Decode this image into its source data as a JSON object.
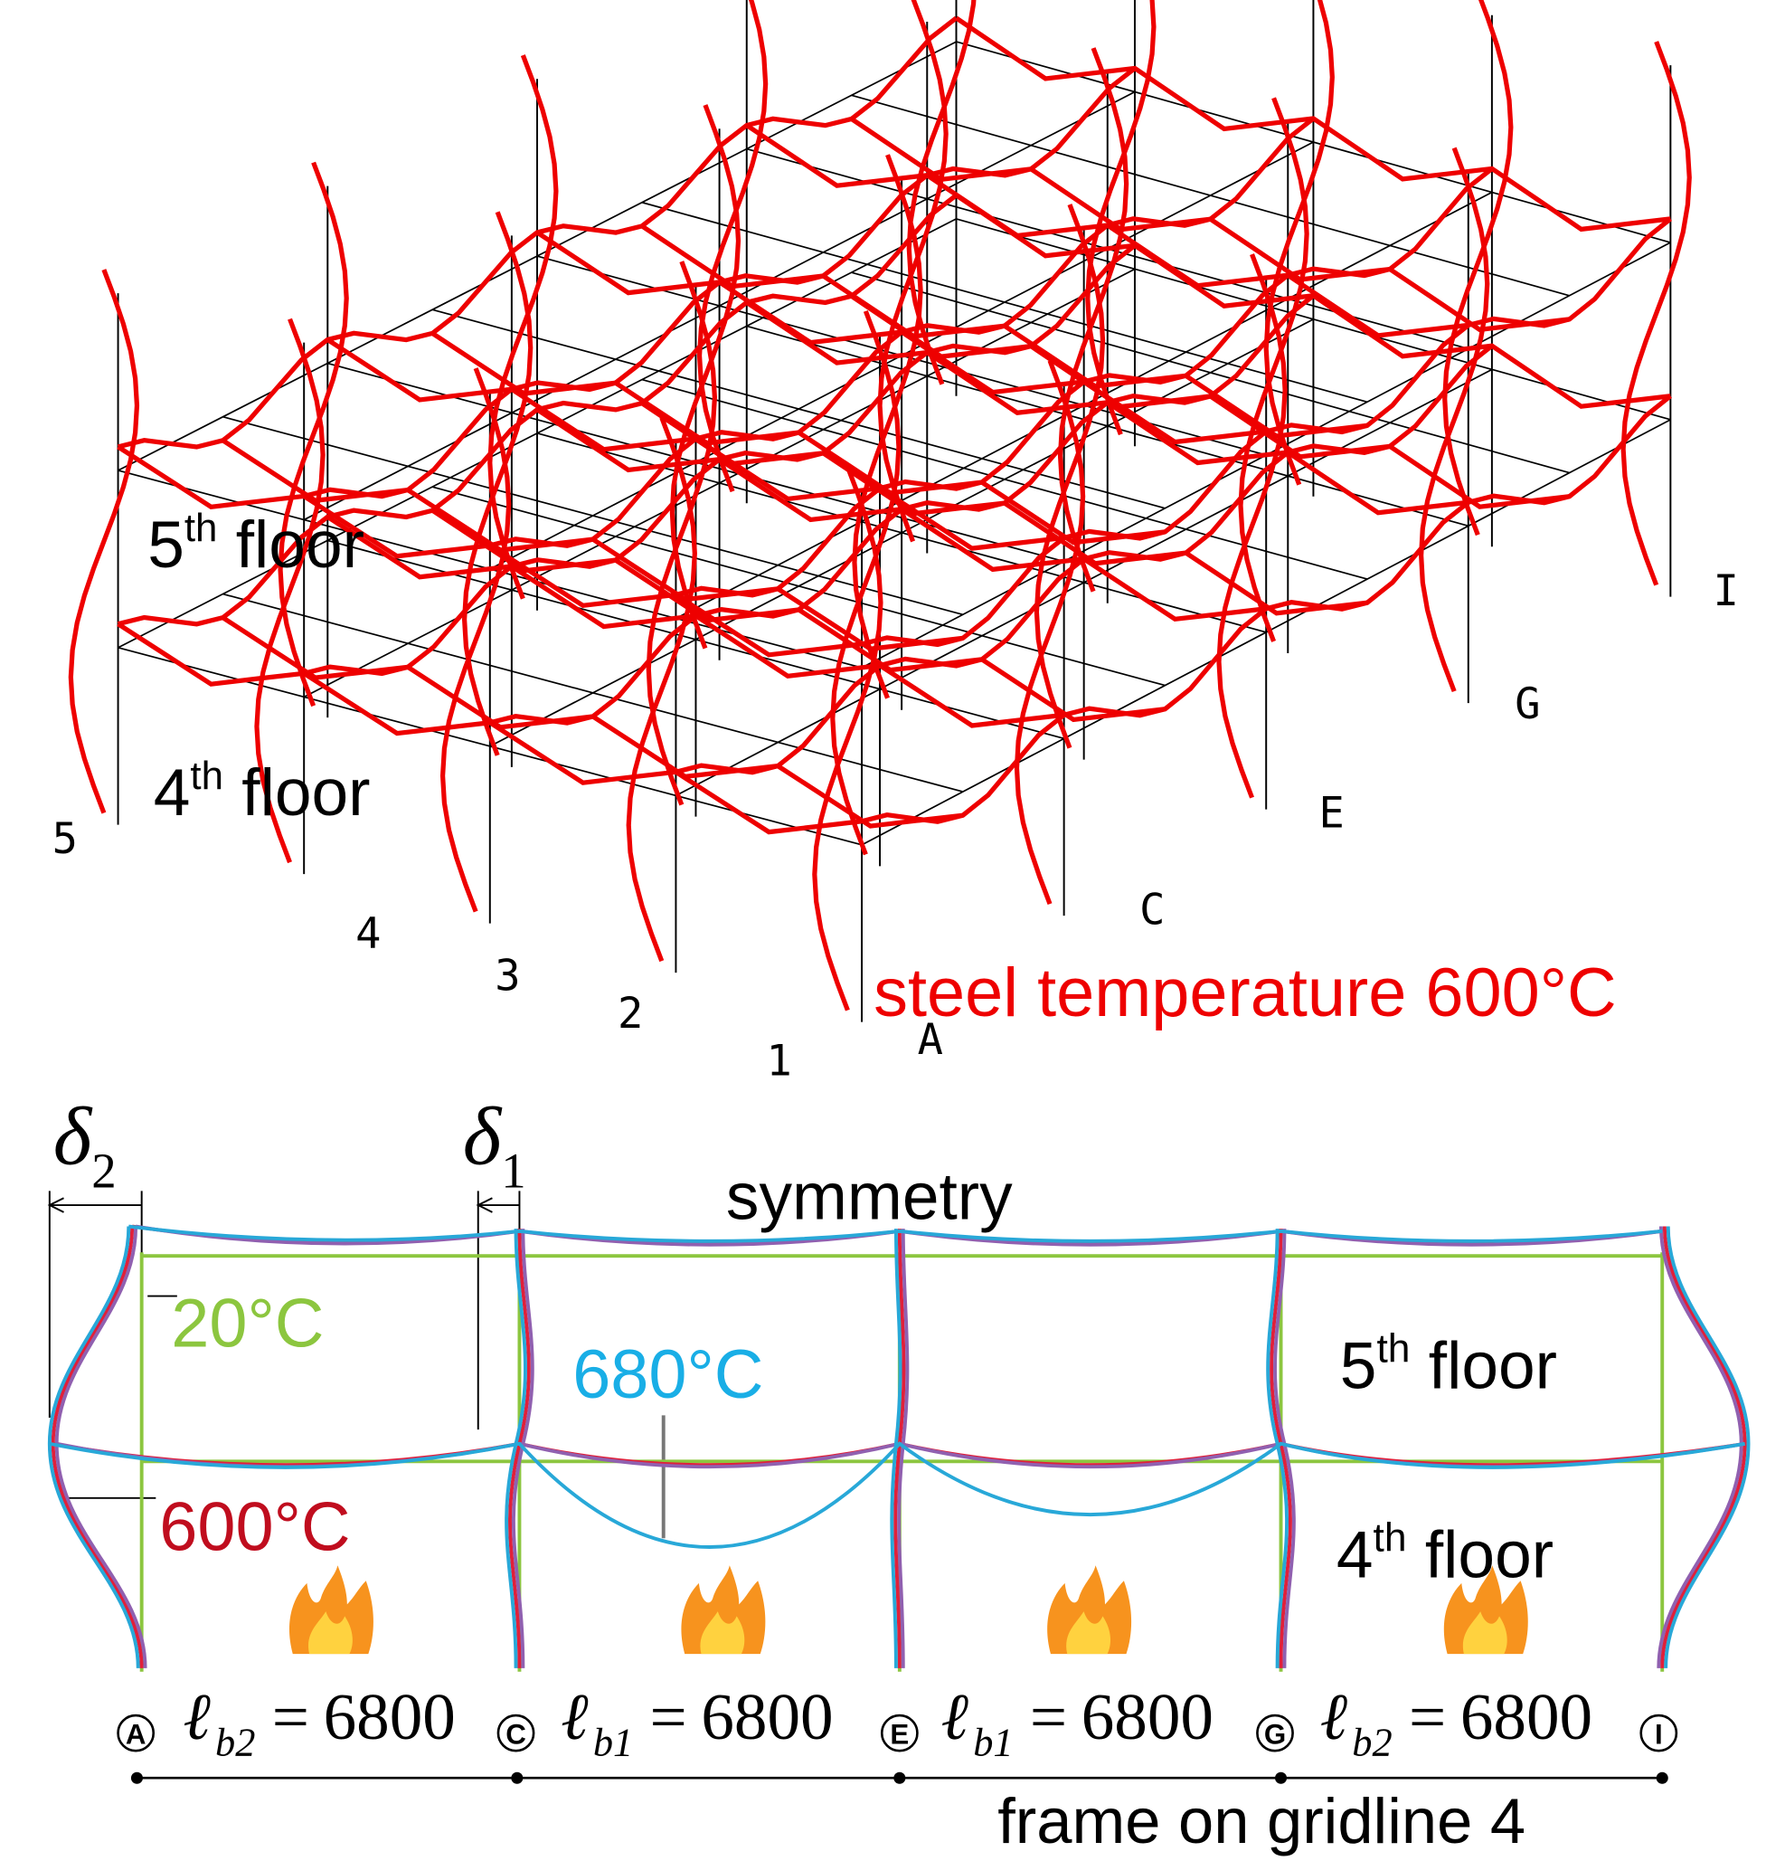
{
  "top_view": {
    "floor_labels": [
      {
        "base": "5",
        "sup": "th",
        "tail": " floor"
      },
      {
        "base": "4",
        "sup": "th",
        "tail": " floor"
      }
    ],
    "gridline_numbers": [
      "5",
      "4",
      "3",
      "2",
      "1"
    ],
    "gridline_letters": [
      "A",
      "C",
      "E",
      "G",
      "I"
    ],
    "caption": "steel temperature 600°C"
  },
  "frame": {
    "deflections": [
      {
        "symbol": "δ",
        "sub": "2"
      },
      {
        "symbol": "δ",
        "sub": "1"
      }
    ],
    "symmetry_label": "symmetry",
    "temperature_labels": [
      "20°C",
      "680°C",
      "600°C"
    ],
    "floor_labels": [
      {
        "base": "5",
        "sup": "th",
        "tail": " floor"
      },
      {
        "base": "4",
        "sup": "th",
        "tail": " floor"
      }
    ],
    "gridlines": [
      "A",
      "C",
      "E",
      "G",
      "I"
    ],
    "spans": [
      {
        "symbol": "ℓ",
        "sub": "b2",
        "relation": "=",
        "length": 6800
      },
      {
        "symbol": "ℓ",
        "sub": "b1",
        "relation": "=",
        "length": 6800
      },
      {
        "symbol": "ℓ",
        "sub": "b1",
        "relation": "=",
        "length": 6800
      },
      {
        "symbol": "ℓ",
        "sub": "b2",
        "relation": "=",
        "length": 6800
      }
    ],
    "caption": "frame on gridline 4"
  }
}
